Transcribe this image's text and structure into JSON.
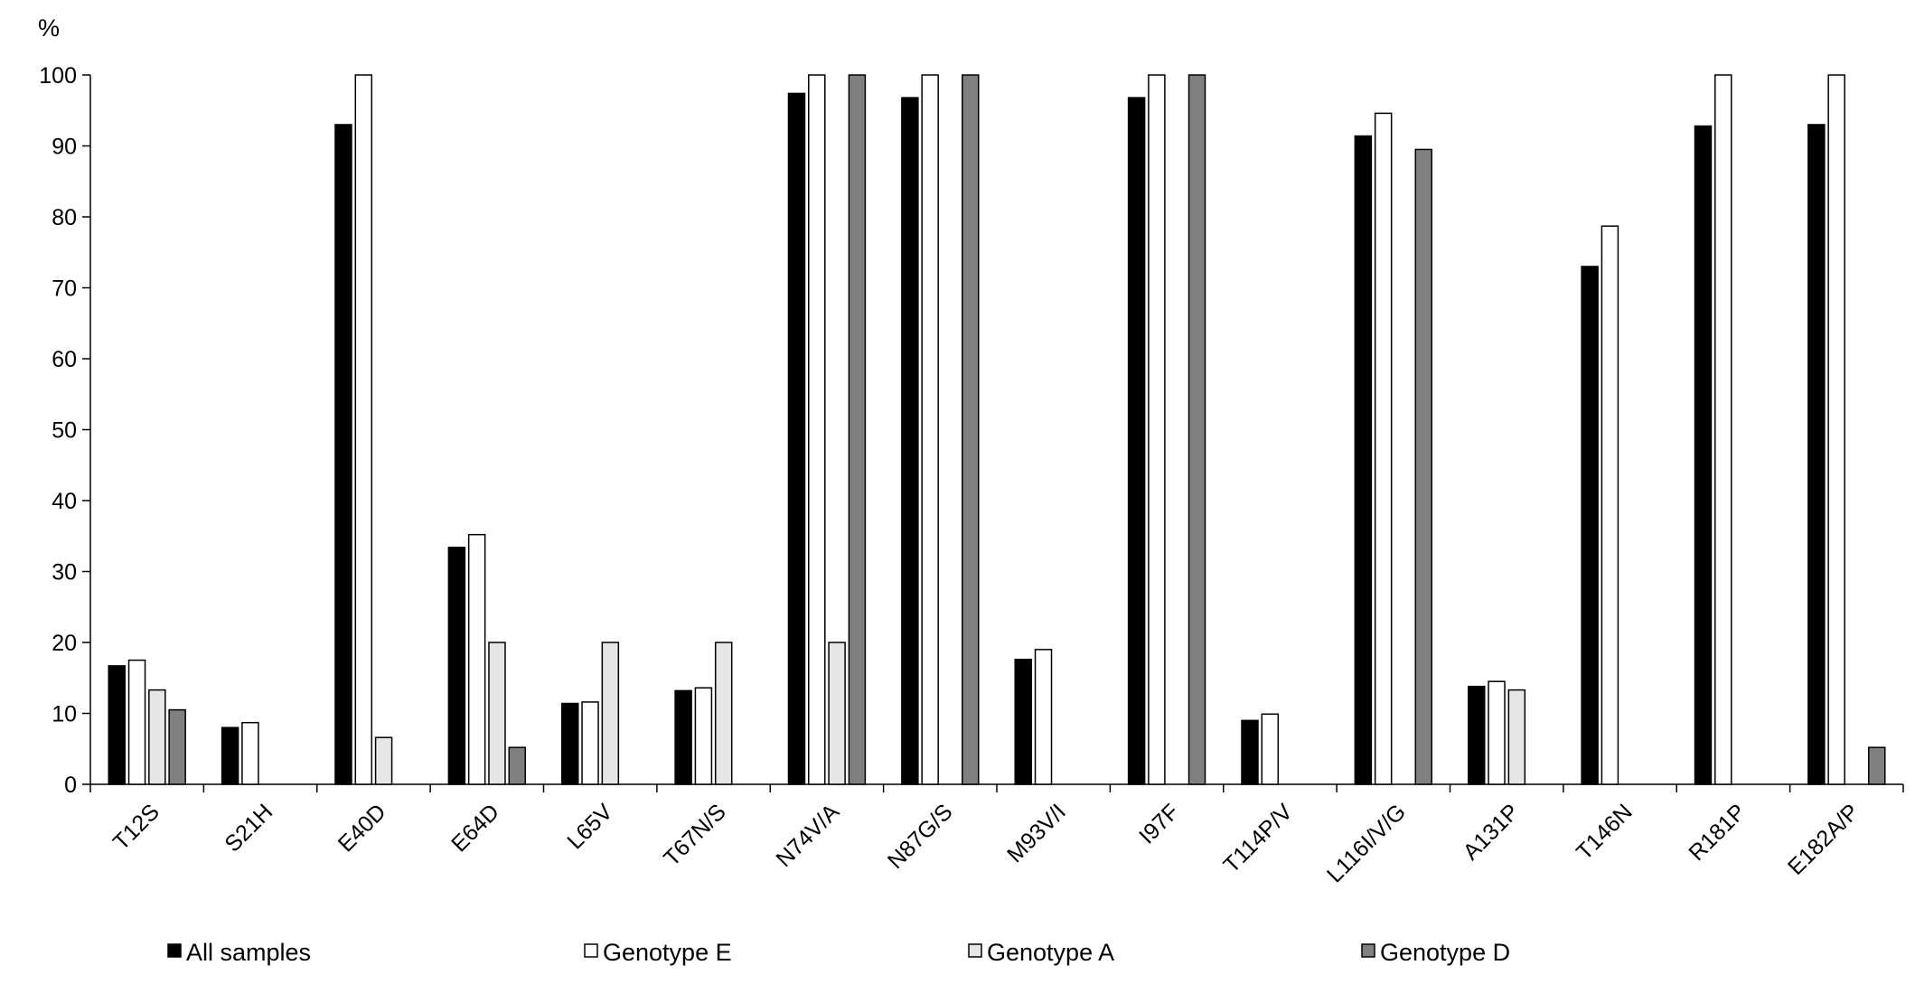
{
  "chart_data": {
    "type": "bar",
    "title": "",
    "xlabel": "",
    "ylabel": "%",
    "ylim": [
      0,
      100
    ],
    "yticks": [
      0,
      10,
      20,
      30,
      40,
      50,
      60,
      70,
      80,
      90,
      100
    ],
    "grid": false,
    "legend_position": "bottom",
    "categories": [
      "T12S",
      "S21H",
      "E40D",
      "E64D",
      "L65V",
      "T67N/S",
      "N74V/A",
      "N87G/S",
      "M93V/I",
      "I97F",
      "T114P/V",
      "L116I/V/G",
      "A131P",
      "T146N",
      "R181P",
      "E182A/P"
    ],
    "series": [
      {
        "name": "All samples",
        "color": "#000000",
        "values": [
          16.7,
          8.0,
          93.0,
          33.4,
          11.4,
          13.2,
          97.4,
          96.8,
          17.6,
          96.8,
          9.0,
          91.4,
          13.8,
          73.0,
          92.8,
          93.0
        ]
      },
      {
        "name": "Genotype E",
        "color": "#ffffff",
        "values": [
          17.5,
          8.7,
          100,
          35.2,
          11.6,
          13.6,
          100,
          100,
          19.0,
          100,
          9.9,
          94.6,
          14.5,
          78.7,
          100,
          100
        ]
      },
      {
        "name": "Genotype A",
        "color": "#e6e6e6",
        "values": [
          13.3,
          0,
          6.6,
          20.0,
          20.0,
          20.0,
          20.0,
          0,
          0,
          0,
          0,
          0,
          13.3,
          0,
          0,
          0
        ]
      },
      {
        "name": "Genotype D",
        "color": "#808080",
        "values": [
          10.5,
          0,
          0,
          5.2,
          0,
          0,
          100,
          100,
          0,
          100,
          0,
          89.5,
          0,
          0,
          0,
          5.2
        ]
      }
    ]
  }
}
